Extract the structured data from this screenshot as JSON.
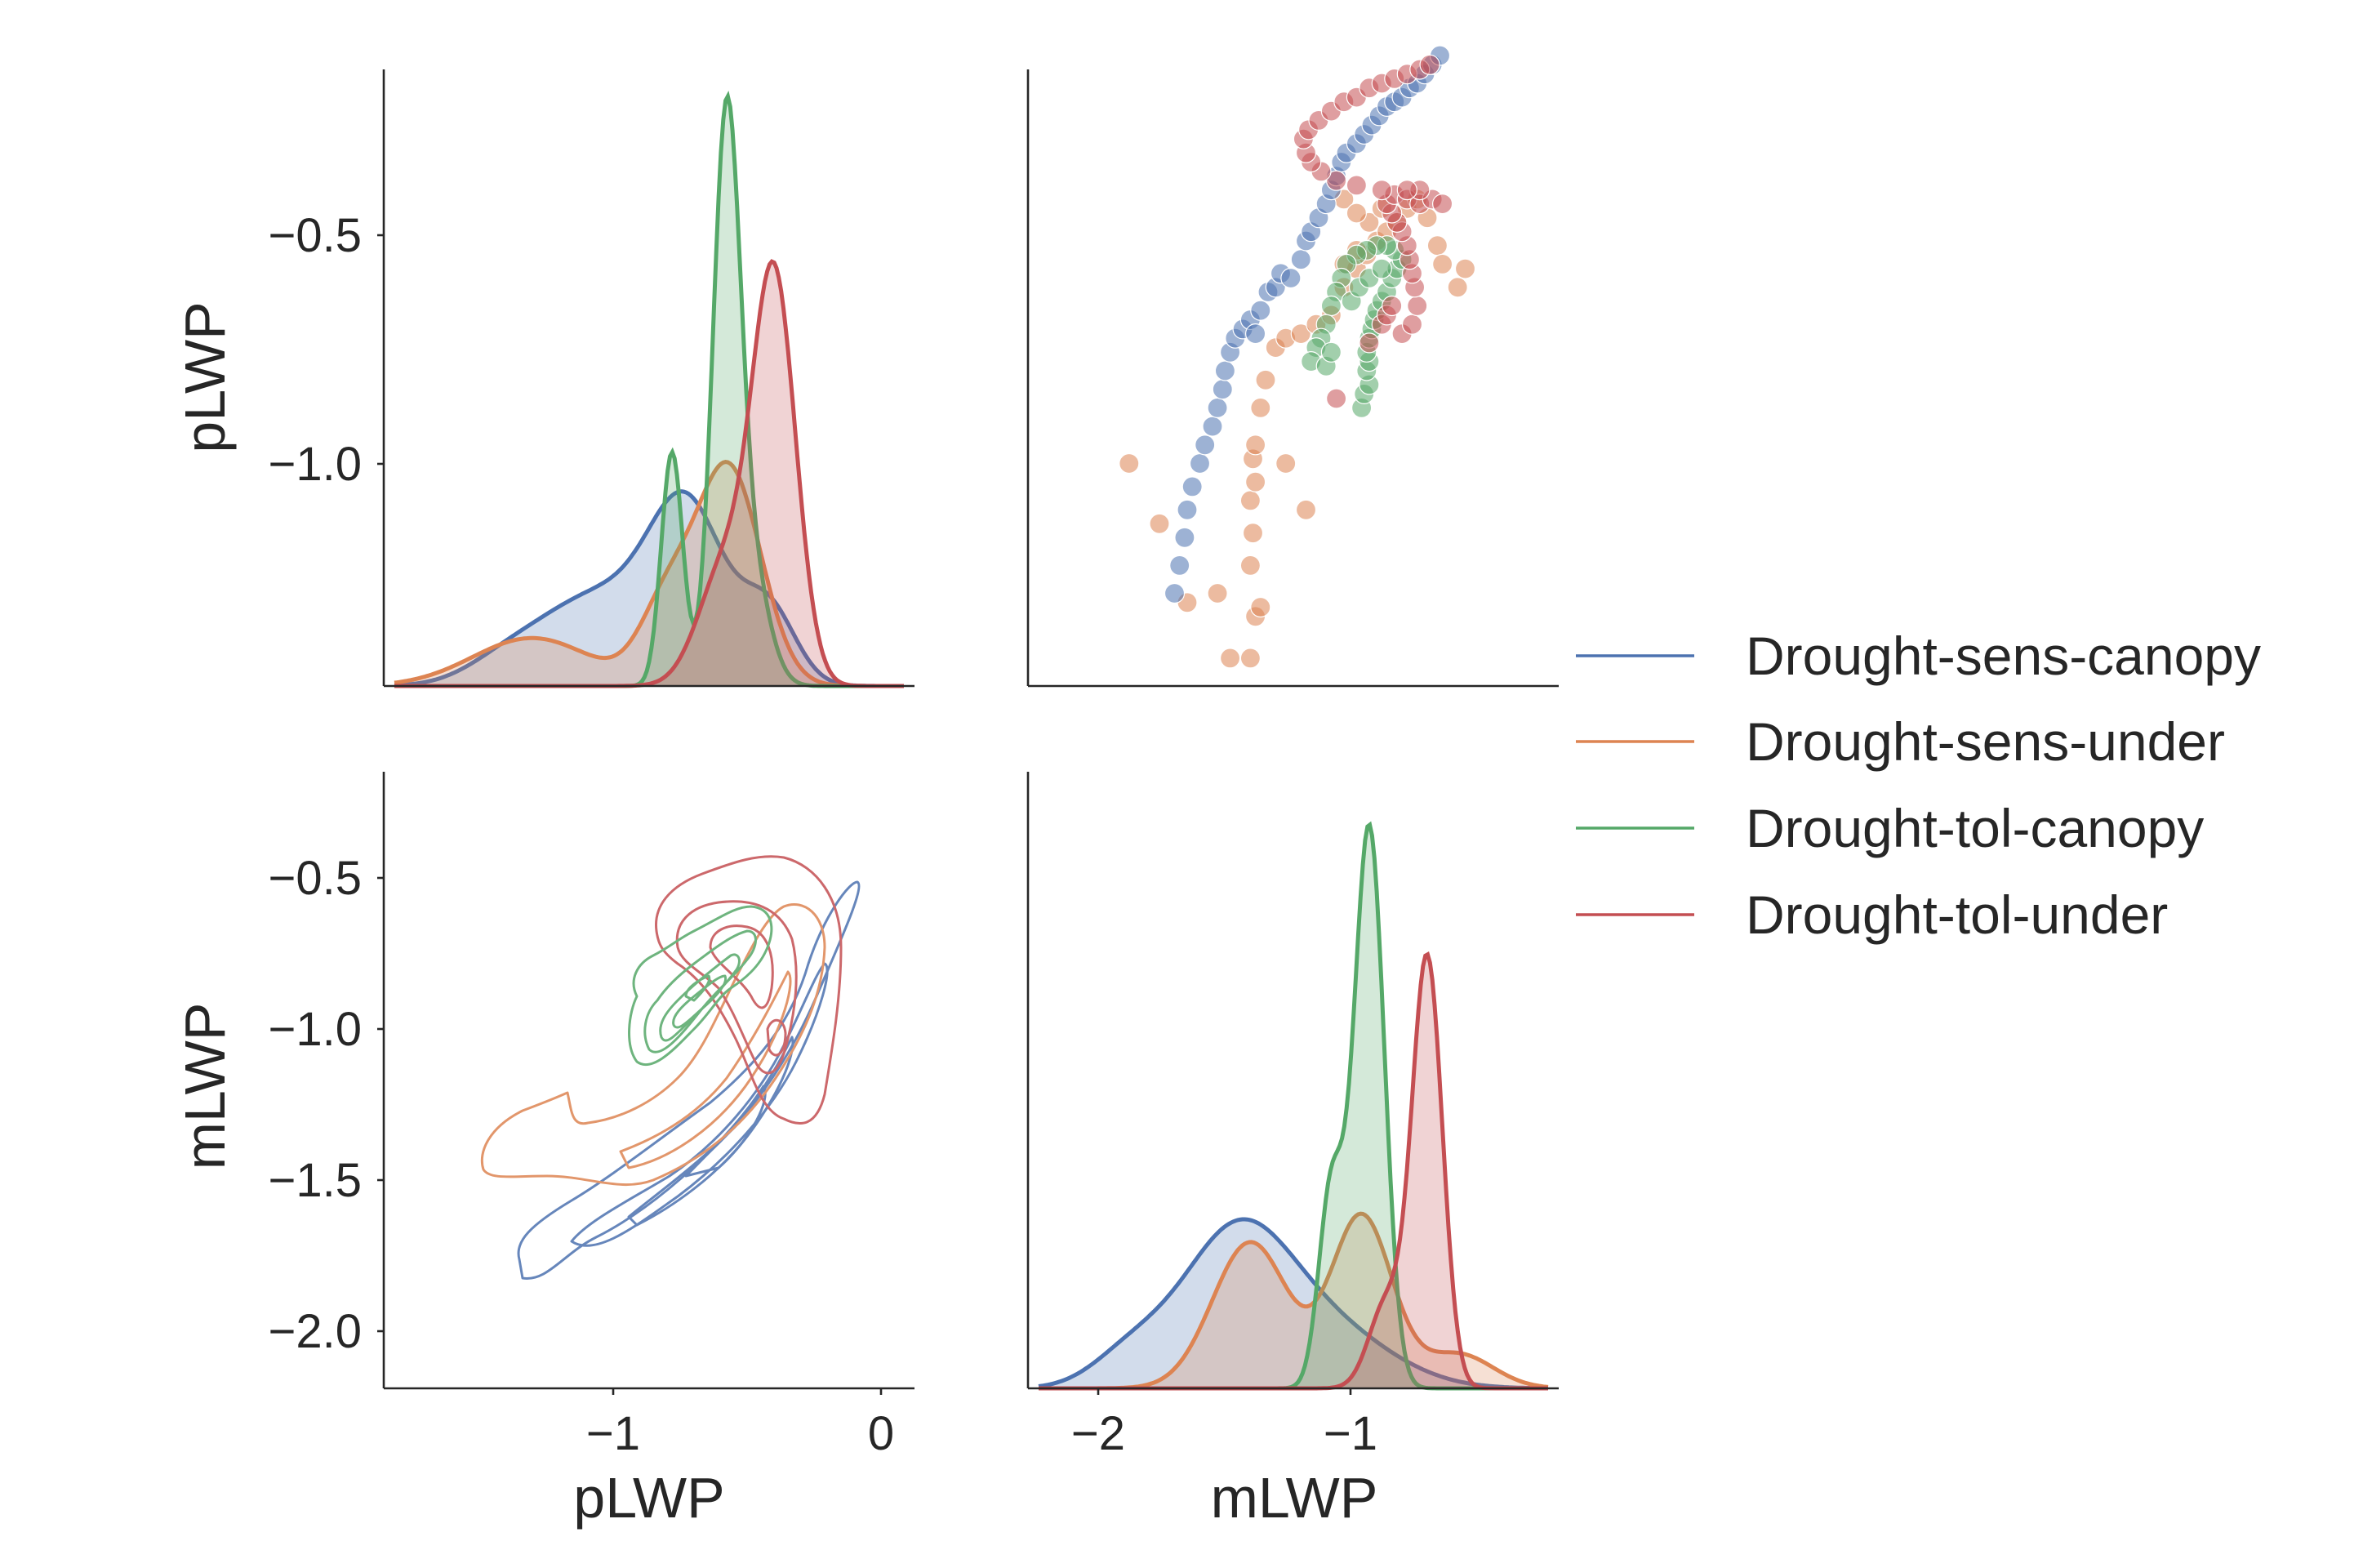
{
  "chart_data": {
    "type": "pairplot",
    "variables": [
      "pLWP",
      "mLWP"
    ],
    "legend": {
      "placement": "center-right",
      "entries": [
        "Drought-sens-canopy",
        "Drought-sens-under",
        "Drought-tol-canopy",
        "Drought-tol-under"
      ]
    },
    "colors": {
      "Drought-sens-canopy": "#4c72b0",
      "Drought-sens-under": "#dd8452",
      "Drought-tol-canopy": "#55a868",
      "Drought-tol-under": "#c44e52"
    },
    "grid": false,
    "axes": {
      "pLWP": {
        "range": [
          -1.85,
          0.12
        ],
        "ticks": [
          -1,
          0
        ],
        "tick_labels": [
          "−1",
          "0"
        ],
        "label": "pLWP"
      },
      "pLWP_y": {
        "range": [
          -1.48,
          -0.15
        ],
        "ticks": [
          -0.5,
          -1.0
        ],
        "tick_labels": [
          "−0.5",
          "−1.0"
        ],
        "label": "pLWP"
      },
      "mLWP": {
        "range": [
          -2.2,
          -0.2
        ],
        "ticks": [
          -0.5,
          -1.0,
          -1.5,
          -2.0
        ],
        "tick_labels": [
          "−0.5",
          "−1.0",
          "−1.5",
          "−2.0"
        ],
        "label": "mLWP"
      },
      "mLWP_x": {
        "range": [
          -2.3,
          -0.2
        ],
        "ticks": [
          -2,
          -1
        ],
        "tick_labels": [
          "−2",
          "−1"
        ],
        "label": "mLWP"
      }
    },
    "panels": [
      {
        "position": "top-left",
        "type": "kde",
        "variable": "pLWP",
        "series": [
          {
            "name": "Drought-sens-canopy",
            "peak_at": -0.72,
            "peak_height": 0.33
          },
          {
            "name": "Drought-sens-under",
            "peak_at": -0.58,
            "peak_height": 0.38
          },
          {
            "name": "Drought-tol-canopy",
            "peak_at": -0.58,
            "peak_height": 1.0
          },
          {
            "name": "Drought-tol-under",
            "peak_at": -0.4,
            "peak_height": 0.72
          }
        ]
      },
      {
        "position": "top-right",
        "type": "scatter",
        "x": "mLWP",
        "y": "pLWP",
        "series": [
          {
            "name": "Drought-sens-canopy",
            "points": [
              [
                -1.72,
                -1.28
              ],
              [
                -1.7,
                -1.22
              ],
              [
                -1.68,
                -1.16
              ],
              [
                -1.67,
                -1.1
              ],
              [
                -1.65,
                -1.05
              ],
              [
                -1.62,
                -1.0
              ],
              [
                -1.6,
                -0.96
              ],
              [
                -1.57,
                -0.92
              ],
              [
                -1.55,
                -0.88
              ],
              [
                -1.53,
                -0.84
              ],
              [
                -1.52,
                -0.8
              ],
              [
                -1.5,
                -0.76
              ],
              [
                -1.48,
                -0.73
              ],
              [
                -1.45,
                -0.71
              ],
              [
                -1.42,
                -0.69
              ],
              [
                -1.4,
                -0.72
              ],
              [
                -1.38,
                -0.67
              ],
              [
                -1.35,
                -0.63
              ],
              [
                -1.32,
                -0.62
              ],
              [
                -1.3,
                -0.59
              ],
              [
                -1.26,
                -0.6
              ],
              [
                -1.22,
                -0.56
              ],
              [
                -1.2,
                -0.52
              ],
              [
                -1.18,
                -0.5
              ],
              [
                -1.15,
                -0.47
              ],
              [
                -1.12,
                -0.44
              ],
              [
                -1.1,
                -0.41
              ],
              [
                -1.08,
                -0.38
              ],
              [
                -1.06,
                -0.35
              ],
              [
                -1.04,
                -0.33
              ],
              [
                -1.0,
                -0.31
              ],
              [
                -0.97,
                -0.29
              ],
              [
                -0.94,
                -0.27
              ],
              [
                -0.91,
                -0.25
              ],
              [
                -0.88,
                -0.23
              ],
              [
                -0.85,
                -0.22
              ],
              [
                -0.82,
                -0.21
              ],
              [
                -0.79,
                -0.19
              ],
              [
                -0.76,
                -0.18
              ],
              [
                -0.73,
                -0.16
              ],
              [
                -0.7,
                -0.14
              ],
              [
                -0.67,
                -0.12
              ]
            ]
          },
          {
            "name": "Drought-sens-under",
            "points": [
              [
                -1.9,
                -1.0
              ],
              [
                -1.78,
                -1.13
              ],
              [
                -1.67,
                -1.3
              ],
              [
                -1.55,
                -1.28
              ],
              [
                -1.5,
                -1.42
              ],
              [
                -1.42,
                -1.42
              ],
              [
                -1.4,
                -1.33
              ],
              [
                -1.38,
                -1.31
              ],
              [
                -1.42,
                -1.22
              ],
              [
                -1.41,
                -1.15
              ],
              [
                -1.42,
                -1.08
              ],
              [
                -1.4,
                -1.04
              ],
              [
                -1.41,
                -0.99
              ],
              [
                -1.4,
                -0.96
              ],
              [
                -1.38,
                -0.88
              ],
              [
                -1.36,
                -0.82
              ],
              [
                -1.32,
                -0.75
              ],
              [
                -1.28,
                -0.73
              ],
              [
                -1.22,
                -0.72
              ],
              [
                -1.16,
                -0.7
              ],
              [
                -1.1,
                -0.68
              ],
              [
                -1.05,
                -0.62
              ],
              [
                -1.0,
                -0.58
              ],
              [
                -0.96,
                -0.55
              ],
              [
                -0.92,
                -0.52
              ],
              [
                -0.88,
                -0.5
              ],
              [
                -0.84,
                -0.48
              ],
              [
                -0.8,
                -0.45
              ],
              [
                -0.76,
                -0.43
              ],
              [
                -0.72,
                -0.47
              ],
              [
                -0.68,
                -0.53
              ],
              [
                -0.66,
                -0.57
              ],
              [
                -0.6,
                -0.62
              ],
              [
                -0.57,
                -0.58
              ],
              [
                -1.05,
                -0.57
              ],
              [
                -1.0,
                -0.54
              ],
              [
                -0.95,
                -0.48
              ],
              [
                -0.9,
                -0.45
              ],
              [
                -1.2,
                -1.1
              ],
              [
                -1.28,
                -1.0
              ],
              [
                -1.05,
                -0.43
              ],
              [
                -1.0,
                -0.46
              ]
            ]
          },
          {
            "name": "Drought-tol-canopy",
            "points": [
              [
                -0.98,
                -0.88
              ],
              [
                -0.97,
                -0.85
              ],
              [
                -0.95,
                -0.83
              ],
              [
                -0.96,
                -0.8
              ],
              [
                -0.95,
                -0.78
              ],
              [
                -0.96,
                -0.76
              ],
              [
                -0.95,
                -0.73
              ],
              [
                -0.94,
                -0.71
              ],
              [
                -0.93,
                -0.69
              ],
              [
                -0.92,
                -0.67
              ],
              [
                -0.9,
                -0.65
              ],
              [
                -0.88,
                -0.63
              ],
              [
                -0.86,
                -0.6
              ],
              [
                -0.84,
                -0.58
              ],
              [
                -0.82,
                -0.56
              ],
              [
                -0.85,
                -0.54
              ],
              [
                -0.88,
                -0.53
              ],
              [
                -0.92,
                -0.53
              ],
              [
                -0.96,
                -0.54
              ],
              [
                -1.0,
                -0.55
              ],
              [
                -1.04,
                -0.57
              ],
              [
                -1.06,
                -0.6
              ],
              [
                -1.08,
                -0.63
              ],
              [
                -1.1,
                -0.66
              ],
              [
                -1.12,
                -0.7
              ],
              [
                -1.14,
                -0.73
              ],
              [
                -1.16,
                -0.75
              ],
              [
                -1.18,
                -0.78
              ],
              [
                -1.12,
                -0.79
              ],
              [
                -1.1,
                -0.76
              ],
              [
                -1.02,
                -0.65
              ],
              [
                -0.99,
                -0.62
              ],
              [
                -0.95,
                -0.6
              ],
              [
                -0.9,
                -0.58
              ]
            ]
          },
          {
            "name": "Drought-tol-under",
            "points": [
              [
                -1.08,
                -0.86
              ],
              [
                -0.95,
                -0.74
              ],
              [
                -0.9,
                -0.7
              ],
              [
                -0.88,
                -0.68
              ],
              [
                -0.86,
                -0.66
              ],
              [
                -0.82,
                -0.72
              ],
              [
                -0.78,
                -0.7
              ],
              [
                -0.76,
                -0.66
              ],
              [
                -0.77,
                -0.62
              ],
              [
                -0.78,
                -0.59
              ],
              [
                -0.79,
                -0.56
              ],
              [
                -0.8,
                -0.53
              ],
              [
                -0.82,
                -0.5
              ],
              [
                -0.84,
                -0.48
              ],
              [
                -0.86,
                -0.46
              ],
              [
                -0.88,
                -0.44
              ],
              [
                -0.85,
                -0.42
              ],
              [
                -0.8,
                -0.43
              ],
              [
                -0.75,
                -0.44
              ],
              [
                -0.7,
                -0.43
              ],
              [
                -0.66,
                -0.44
              ],
              [
                -0.75,
                -0.41
              ],
              [
                -0.8,
                -0.41
              ],
              [
                -0.9,
                -0.41
              ],
              [
                -1.0,
                -0.4
              ],
              [
                -1.08,
                -0.39
              ],
              [
                -1.14,
                -0.37
              ],
              [
                -1.18,
                -0.35
              ],
              [
                -1.2,
                -0.33
              ],
              [
                -1.21,
                -0.3
              ],
              [
                -1.19,
                -0.28
              ],
              [
                -1.15,
                -0.26
              ],
              [
                -1.1,
                -0.24
              ],
              [
                -1.05,
                -0.22
              ],
              [
                -1.0,
                -0.21
              ],
              [
                -0.95,
                -0.19
              ],
              [
                -0.9,
                -0.18
              ],
              [
                -0.85,
                -0.17
              ],
              [
                -0.8,
                -0.16
              ],
              [
                -0.75,
                -0.15
              ],
              [
                -0.71,
                -0.14
              ]
            ]
          }
        ]
      },
      {
        "position": "bottom-left",
        "type": "kde-contour",
        "x": "pLWP",
        "y": "mLWP",
        "series": [
          "Drought-sens-canopy",
          "Drought-sens-under",
          "Drought-tol-canopy",
          "Drought-tol-under"
        ]
      },
      {
        "position": "bottom-right",
        "type": "kde",
        "variable": "mLWP",
        "series": [
          {
            "name": "Drought-sens-canopy",
            "peak_at": -1.45,
            "peak_height": 0.3
          },
          {
            "name": "Drought-sens-under",
            "peak_at": -1.0,
            "peak_height": 0.31
          },
          {
            "name": "Drought-tol-canopy",
            "peak_at": -0.95,
            "peak_height": 1.0
          },
          {
            "name": "Drought-tol-under",
            "peak_at": -0.72,
            "peak_height": 0.77
          }
        ]
      }
    ]
  }
}
